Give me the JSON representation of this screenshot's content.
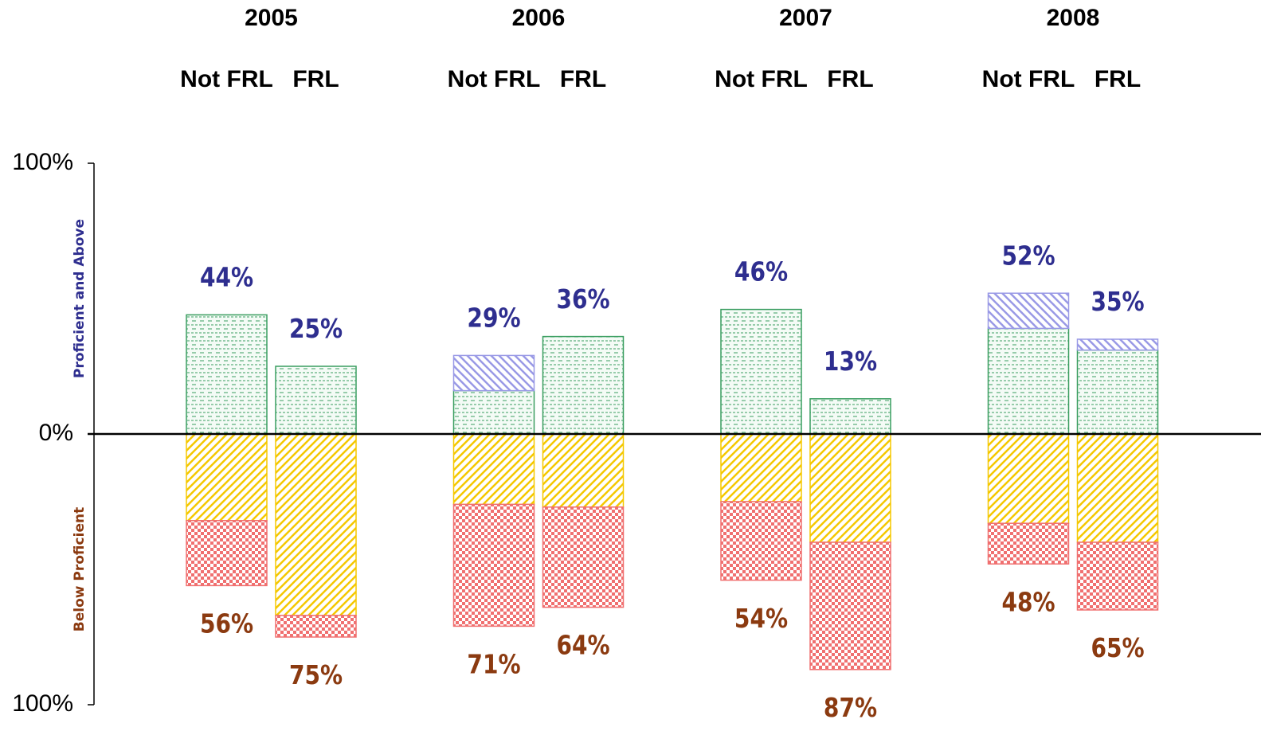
{
  "chart_data": {
    "type": "diverging_stacked_bar",
    "groups": [
      "2005",
      "2006",
      "2007",
      "2008"
    ],
    "categories": [
      "Not FRL",
      "FRL",
      "Not FRL",
      "FRL",
      "Not FRL",
      "FRL",
      "Not FRL",
      "FRL"
    ],
    "y_label_above": "Proficient and Above",
    "y_label_below": "Below Proficient",
    "ylim": [
      -100,
      100
    ],
    "yticks": [
      {
        "value": -100,
        "label": "100%"
      },
      {
        "value": 0,
        "label": "0%"
      },
      {
        "value": 100,
        "label": "100%"
      }
    ],
    "series": [
      {
        "color": "#3a9e60",
        "pattern": "dashes",
        "values": [
          44,
          25,
          16,
          36,
          46,
          13,
          39,
          31
        ]
      },
      {
        "color": "#9999e6",
        "pattern": "hatch",
        "values": [
          0,
          0,
          13,
          0,
          0,
          0,
          13,
          4
        ]
      },
      {
        "color": "#f5c800",
        "pattern": "hatch",
        "values": [
          -32,
          -67,
          -26,
          -27,
          -25,
          -40,
          -33,
          -40
        ]
      },
      {
        "color": "#f07070",
        "pattern": "checker",
        "values": [
          -24,
          -8,
          -45,
          -37,
          -29,
          -47,
          -15,
          -25
        ]
      }
    ],
    "labels_above": [
      "44%",
      "25%",
      "29%",
      "36%",
      "46%",
      "13%",
      "52%",
      "35%"
    ],
    "labels_below": [
      "56%",
      "75%",
      "71%",
      "64%",
      "54%",
      "87%",
      "48%",
      "65%"
    ],
    "label_above_color": "#2e2e8f",
    "label_below_color": "#8b3a10"
  }
}
